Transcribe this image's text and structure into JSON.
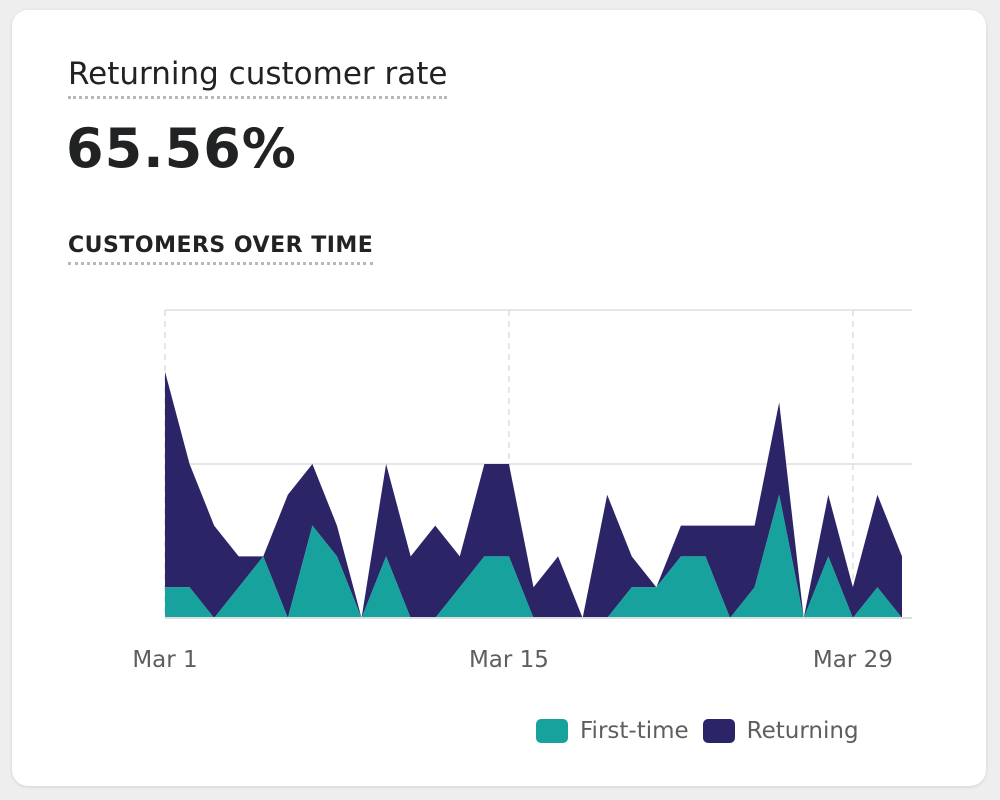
{
  "card": {
    "metric_title": "Returning customer rate",
    "metric_value": "65.56%",
    "section_title": "CUSTOMERS OVER TIME"
  },
  "colors": {
    "first_time": "#17a29d",
    "returning": "#2b2568",
    "grid": "#dcdee0",
    "axis_label": "#5c5f62"
  },
  "chart_data": {
    "type": "area",
    "stacked": true,
    "x": [
      "Mar 1",
      "Mar 2",
      "Mar 3",
      "Mar 4",
      "Mar 5",
      "Mar 6",
      "Mar 7",
      "Mar 8",
      "Mar 9",
      "Mar 10",
      "Mar 11",
      "Mar 12",
      "Mar 13",
      "Mar 14",
      "Mar 15",
      "Mar 16",
      "Mar 17",
      "Mar 18",
      "Mar 19",
      "Mar 20",
      "Mar 21",
      "Mar 22",
      "Mar 23",
      "Mar 24",
      "Mar 25",
      "Mar 26",
      "Mar 27",
      "Mar 28",
      "Mar 29",
      "Mar 30",
      "Mar 31"
    ],
    "x_tick_labels": [
      "Mar 1",
      "Mar 15",
      "Mar 29"
    ],
    "x_tick_indices": [
      0,
      14,
      28
    ],
    "ylim": [
      0,
      10
    ],
    "y_gridlines": [
      5,
      10
    ],
    "series": [
      {
        "name": "First-time",
        "color": "#17a29d",
        "values": [
          1,
          1,
          0,
          1,
          2,
          0,
          3,
          2,
          0,
          2,
          0,
          0,
          1,
          2,
          2,
          0,
          0,
          0,
          0,
          1,
          1,
          2,
          2,
          0,
          1,
          4,
          0,
          2,
          0,
          1,
          0
        ]
      },
      {
        "name": "Returning",
        "color": "#2b2568",
        "values": [
          7,
          4,
          3,
          1,
          0,
          4,
          2,
          1,
          0,
          3,
          2,
          3,
          1,
          3,
          3,
          1,
          2,
          0,
          4,
          1,
          0,
          1,
          1,
          3,
          2,
          3,
          0,
          2,
          1,
          3,
          2
        ]
      }
    ],
    "legend": {
      "position": "bottom-right",
      "entries": [
        "First-time",
        "Returning"
      ]
    }
  }
}
